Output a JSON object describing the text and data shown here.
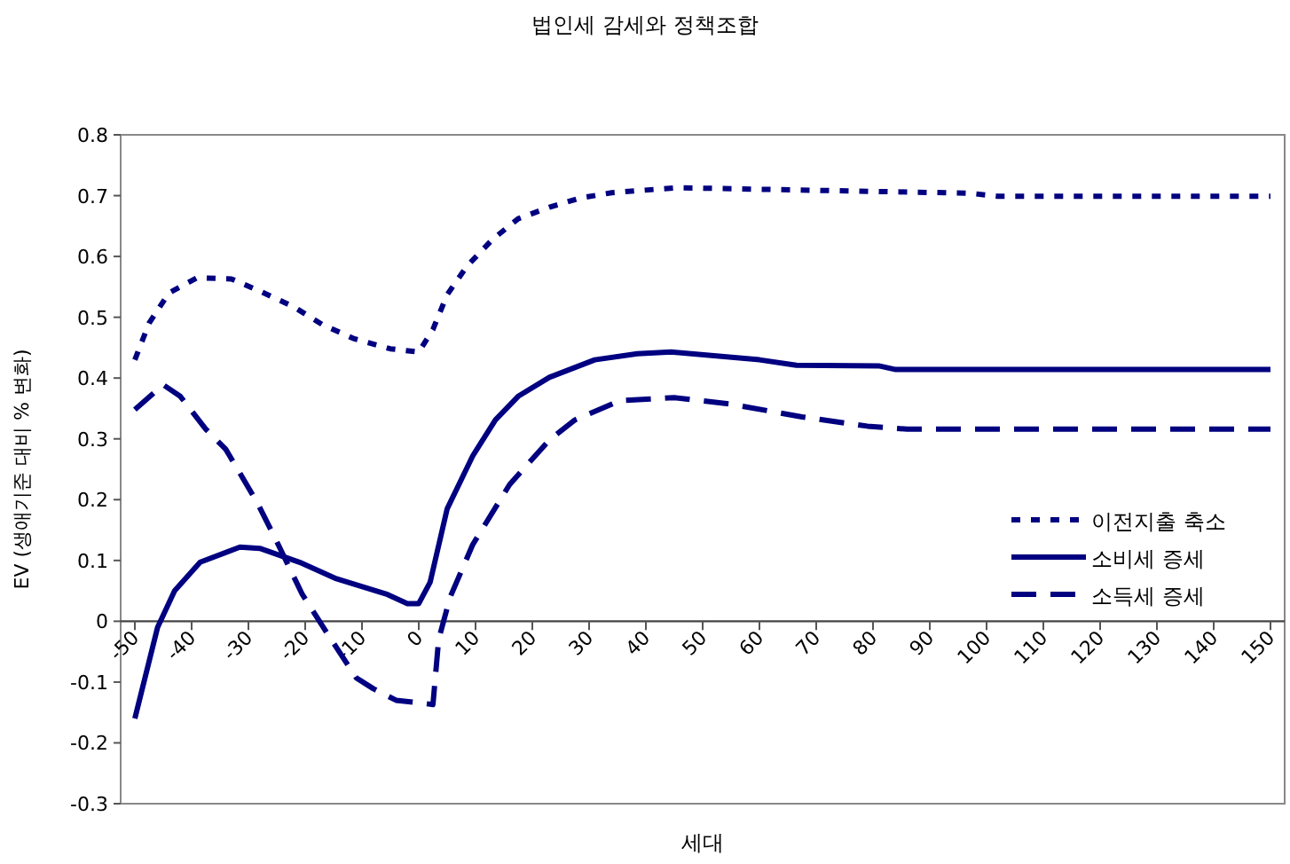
{
  "chart_data": {
    "type": "line",
    "title": "법인세 감세와 정책조합",
    "xlabel": "세대",
    "ylabel": "EV (생애기준 대비 % 변화)",
    "xlim": [
      -52.5,
      152.5
    ],
    "xticks": [
      -50,
      -40,
      -30,
      -20,
      -10,
      0,
      10,
      20,
      30,
      40,
      50,
      60,
      70,
      80,
      90,
      100,
      110,
      120,
      130,
      140,
      150
    ],
    "ylim": [
      -0.3,
      0.8
    ],
    "yticks": [
      -0.3,
      -0.2,
      -0.1,
      0,
      0.1,
      0.2,
      0.3,
      0.4,
      0.5,
      0.6,
      0.7,
      0.8
    ],
    "grid": false,
    "legend": "right",
    "series": [
      {
        "name": "이전지출 축소",
        "color": "#000080",
        "line_style": "dotted",
        "x": [
          -50,
          -47.5,
          -44,
          -39,
          -33,
          -28,
          -22,
          -17,
          -11.5,
          -5,
          0,
          2.5,
          5,
          8.5,
          13,
          17.5,
          23,
          28.5,
          34,
          45.5,
          97,
          102,
          150
        ],
        "values": [
          0.43,
          0.49,
          0.54,
          0.565,
          0.563,
          0.543,
          0.517,
          0.488,
          0.465,
          0.448,
          0.443,
          0.48,
          0.537,
          0.584,
          0.628,
          0.662,
          0.681,
          0.696,
          0.705,
          0.713,
          0.704,
          0.699,
          0.699
        ]
      },
      {
        "name": "소비세 증세",
        "color": "#000080",
        "line_style": "solid",
        "x": [
          -50,
          -46,
          -43,
          -38.5,
          -31.5,
          -28,
          -21,
          -14.5,
          -5.5,
          -2,
          0,
          2,
          5,
          9.5,
          13.5,
          17.5,
          23,
          31,
          38.5,
          44.5,
          60,
          66.5,
          81,
          84,
          150
        ],
        "values": [
          -0.16,
          -0.01,
          0.05,
          0.097,
          0.122,
          0.12,
          0.097,
          0.07,
          0.044,
          0.029,
          0.029,
          0.064,
          0.185,
          0.272,
          0.331,
          0.37,
          0.401,
          0.43,
          0.44,
          0.443,
          0.43,
          0.421,
          0.42,
          0.414,
          0.414
        ]
      },
      {
        "name": "소득세 증세",
        "color": "#000080",
        "line_style": "dashed",
        "x": [
          -50,
          -45,
          -42,
          -37.5,
          -34,
          -28.5,
          -25,
          -20.5,
          -15.5,
          -11,
          -8,
          -4,
          -1,
          2.5,
          3.5,
          5.5,
          9.5,
          16,
          23,
          27.5,
          35.5,
          45,
          55,
          67.5,
          79,
          86,
          150
        ],
        "values": [
          0.348,
          0.389,
          0.37,
          0.316,
          0.283,
          0.196,
          0.131,
          0.044,
          -0.029,
          -0.093,
          -0.111,
          -0.13,
          -0.133,
          -0.137,
          -0.03,
          0.039,
          0.126,
          0.225,
          0.298,
          0.331,
          0.363,
          0.368,
          0.357,
          0.336,
          0.321,
          0.316,
          0.316
        ]
      }
    ]
  }
}
